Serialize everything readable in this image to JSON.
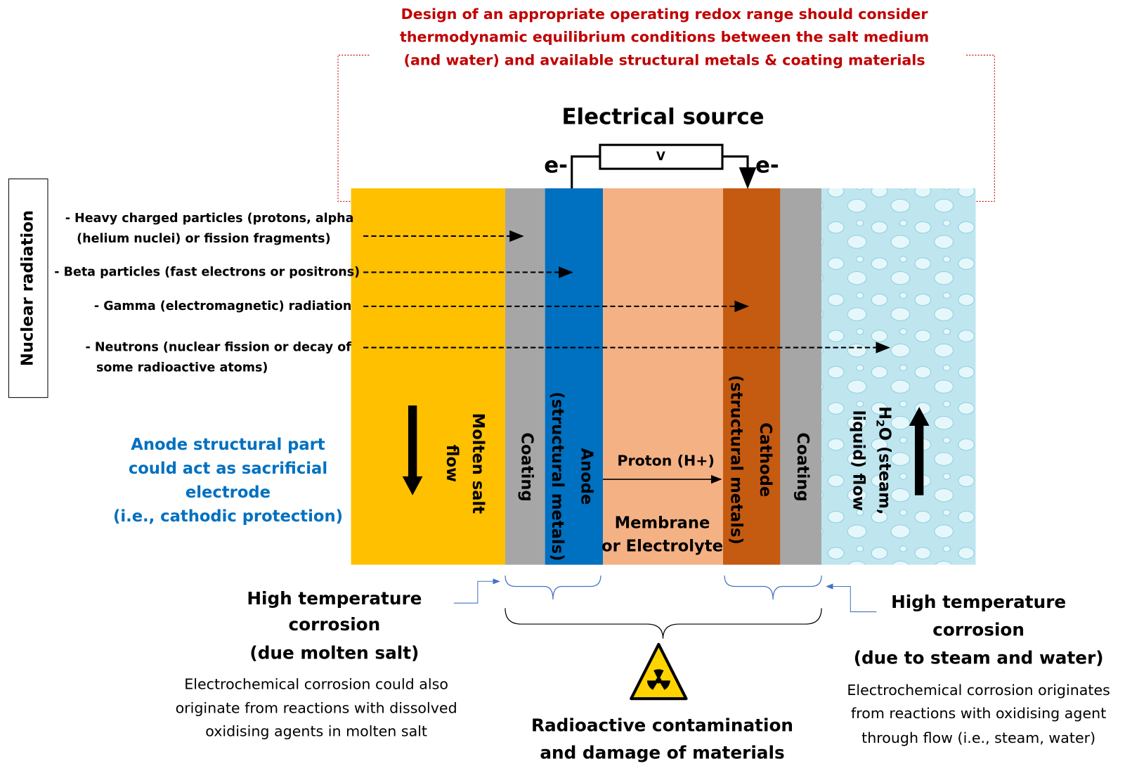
{
  "header": {
    "note_lines": [
      "Design of an appropriate operating redox range should consider",
      "thermodynamic equilibrium conditions between the salt medium",
      "(and water) and available structural metals & coating materials"
    ]
  },
  "electrical_source": {
    "title": "Electrical source",
    "voltage": "V",
    "left_electron": "e-",
    "right_electron": "e-"
  },
  "nuclear_radiation": {
    "label": "Nuclear radiation",
    "items": [
      [
        "- Heavy charged particles (protons, alpha",
        "(helium nuclei) or fission fragments)"
      ],
      [
        "- Beta particles (fast electrons or positrons)"
      ],
      [
        "- Gamma (electromagnetic) radiation"
      ],
      [
        "- Neutrons (nuclear fission or decay of",
        "some radioactive atoms)"
      ]
    ]
  },
  "layers": {
    "molten_salt": [
      "Molten salt",
      "flow"
    ],
    "coating_left": "Coating",
    "anode": [
      "Anode",
      "(structural metals)"
    ],
    "proton": "Proton (H+)",
    "membrane": [
      "Membrane",
      "or Electrolyte"
    ],
    "cathode": [
      "Cathode",
      "(structural metals)"
    ],
    "coating_right": "Coating",
    "water": [
      "H",
      "2",
      "O (steam,",
      "liquid) flow"
    ]
  },
  "anode_note": [
    "Anode structural part",
    "could act as sacrificial",
    "electrode",
    "(i.e., cathodic protection)"
  ],
  "left_corrosion": {
    "title": [
      "High temperature",
      "corrosion",
      "(due molten salt)"
    ],
    "description": [
      "Electrochemical corrosion could also",
      "originate from reactions with dissolved",
      "oxidising agents in molten salt"
    ]
  },
  "right_corrosion": {
    "title": [
      "High temperature",
      "corrosion",
      "(due to steam and water)"
    ],
    "description": [
      "Electrochemical corrosion originates",
      "from reactions with oxidising agent",
      "through flow (i.e., steam, water)"
    ]
  },
  "radioactive": [
    "Radioactive contamination",
    "and damage of materials"
  ]
}
